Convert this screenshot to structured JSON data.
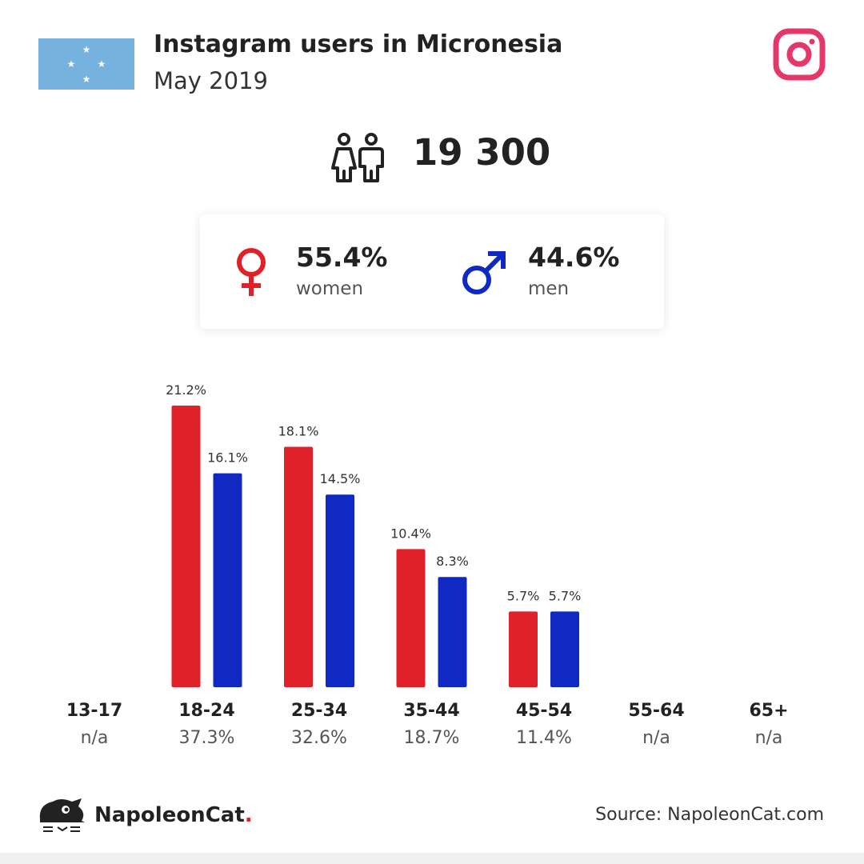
{
  "header": {
    "title": "Instagram users in Micronesia",
    "subtitle": "May 2019"
  },
  "total_users": "19 300",
  "gender": {
    "women": {
      "pct": "55.4%",
      "label": "women",
      "color": "#e0212a"
    },
    "men": {
      "pct": "44.6%",
      "label": "men",
      "color": "#1029c2"
    }
  },
  "colors": {
    "women": "#e0212a",
    "men": "#1029c2",
    "flag": "#75b2dd",
    "instagram": "#e4386a"
  },
  "icons": [
    "flag-micronesia",
    "instagram-icon",
    "users-icon",
    "female-symbol-icon",
    "male-symbol-icon",
    "napoleoncat-logo-icon"
  ],
  "chart_data": {
    "type": "bar",
    "categories": [
      "13-17",
      "18-24",
      "25-34",
      "35-44",
      "45-54",
      "55-64",
      "65+"
    ],
    "category_totals": [
      "n/a",
      "37.3%",
      "32.6%",
      "18.7%",
      "11.4%",
      "n/a",
      "n/a"
    ],
    "series": [
      {
        "name": "women",
        "values": [
          null,
          21.2,
          18.1,
          10.4,
          5.7,
          null,
          null
        ],
        "labels": [
          "",
          "21.2%",
          "18.1%",
          "10.4%",
          "5.7%",
          "",
          ""
        ]
      },
      {
        "name": "men",
        "values": [
          null,
          16.1,
          14.5,
          8.3,
          5.7,
          null,
          null
        ],
        "labels": [
          "",
          "16.1%",
          "14.5%",
          "8.3%",
          "5.7%",
          "",
          ""
        ]
      }
    ],
    "ylim": [
      0,
      21.2
    ],
    "grid": false
  },
  "footer": {
    "brand": "NapoleonCat",
    "brand_dot": ".",
    "source": "Source: NapoleonCat.com"
  }
}
